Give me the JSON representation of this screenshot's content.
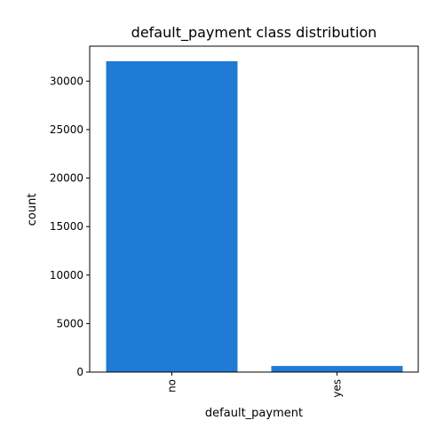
{
  "chart_data": {
    "type": "bar",
    "title": "default_payment class distribution",
    "xlabel": "default_payment",
    "ylabel": "count",
    "categories": [
      "no",
      "yes"
    ],
    "values": [
      32050,
      630
    ],
    "ylim": [
      0,
      33600
    ],
    "yticks": [
      0,
      5000,
      10000,
      15000,
      20000,
      25000,
      30000
    ],
    "bar_color": "#1f7bd6",
    "grid": false,
    "legend": "none",
    "x_tick_rotation": "vertical"
  }
}
